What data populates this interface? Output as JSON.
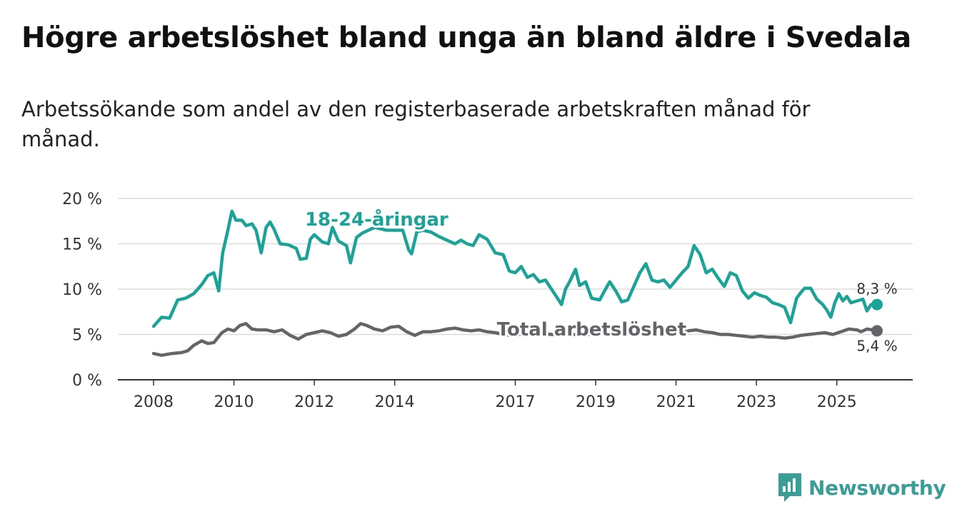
{
  "title": "Högre arbetslöshet bland unga än bland äldre i Svedala",
  "subtitle": "Arbetssökande som andel av den registerbaserade arbetskraften månad för månad.",
  "brand": {
    "name": "Newsworthy",
    "color": "#3a9d96"
  },
  "chart_data": {
    "type": "line",
    "ylim": [
      0,
      20
    ],
    "yticks": [
      "0 %",
      "5 %",
      "10 %",
      "15 %",
      "20 %"
    ],
    "ytick_values": [
      0,
      5,
      10,
      15,
      20
    ],
    "xlim": [
      2008.0,
      2026.0
    ],
    "xticks": [
      "2008",
      "2010",
      "2012",
      "2014",
      "2017",
      "2019",
      "2021",
      "2023",
      "2025"
    ],
    "xtick_values": [
      2008.0,
      2010.0,
      2012.0,
      2014.0,
      2017.0,
      2019.0,
      2021.0,
      2023.0,
      2025.0
    ],
    "grid": true,
    "series": [
      {
        "name": "18-24-åringar",
        "label": "18-24-åringar",
        "color": "#1aa396",
        "end_label": "8,3 %",
        "points": [
          [
            2008.0,
            5.9
          ],
          [
            2008.2,
            6.9
          ],
          [
            2008.4,
            6.8
          ],
          [
            2008.6,
            8.8
          ],
          [
            2008.8,
            9.0
          ],
          [
            2009.0,
            9.5
          ],
          [
            2009.2,
            10.5
          ],
          [
            2009.35,
            11.5
          ],
          [
            2009.5,
            11.8
          ],
          [
            2009.62,
            9.8
          ],
          [
            2009.72,
            14.0
          ],
          [
            2009.85,
            16.5
          ],
          [
            2009.95,
            18.6
          ],
          [
            2010.05,
            17.6
          ],
          [
            2010.2,
            17.6
          ],
          [
            2010.3,
            17.0
          ],
          [
            2010.45,
            17.2
          ],
          [
            2010.55,
            16.5
          ],
          [
            2010.68,
            14.0
          ],
          [
            2010.8,
            16.8
          ],
          [
            2010.9,
            17.4
          ],
          [
            2011.0,
            16.6
          ],
          [
            2011.15,
            15.0
          ],
          [
            2011.35,
            14.9
          ],
          [
            2011.55,
            14.5
          ],
          [
            2011.65,
            13.3
          ],
          [
            2011.8,
            13.4
          ],
          [
            2011.9,
            15.5
          ],
          [
            2012.0,
            16.0
          ],
          [
            2012.2,
            15.2
          ],
          [
            2012.35,
            15.0
          ],
          [
            2012.45,
            16.8
          ],
          [
            2012.6,
            15.3
          ],
          [
            2012.8,
            14.8
          ],
          [
            2012.9,
            12.9
          ],
          [
            2013.05,
            15.7
          ],
          [
            2013.2,
            16.2
          ],
          [
            2013.5,
            16.8
          ],
          [
            2013.8,
            16.5
          ],
          [
            2014.1,
            16.5
          ],
          [
            2014.2,
            16.5
          ],
          [
            2014.35,
            14.3
          ],
          [
            2014.42,
            13.9
          ],
          [
            2014.55,
            16.3
          ],
          [
            2014.7,
            16.5
          ],
          [
            2014.9,
            16.3
          ],
          [
            2015.1,
            15.8
          ],
          [
            2015.3,
            15.4
          ],
          [
            2015.5,
            15.0
          ],
          [
            2015.65,
            15.4
          ],
          [
            2015.8,
            15.0
          ],
          [
            2015.95,
            14.8
          ],
          [
            2016.1,
            16.0
          ],
          [
            2016.3,
            15.5
          ],
          [
            2016.5,
            14.0
          ],
          [
            2016.7,
            13.8
          ],
          [
            2016.85,
            12.0
          ],
          [
            2017.0,
            11.8
          ],
          [
            2017.15,
            12.5
          ],
          [
            2017.3,
            11.3
          ],
          [
            2017.45,
            11.6
          ],
          [
            2017.6,
            10.8
          ],
          [
            2017.75,
            11.0
          ],
          [
            2017.9,
            10.0
          ],
          [
            2018.05,
            9.0
          ],
          [
            2018.15,
            8.3
          ],
          [
            2018.25,
            10.0
          ],
          [
            2018.35,
            10.8
          ],
          [
            2018.5,
            12.2
          ],
          [
            2018.6,
            10.4
          ],
          [
            2018.75,
            10.8
          ],
          [
            2018.9,
            9.0
          ],
          [
            2019.1,
            8.8
          ],
          [
            2019.22,
            9.8
          ],
          [
            2019.35,
            10.8
          ],
          [
            2019.5,
            9.8
          ],
          [
            2019.65,
            8.6
          ],
          [
            2019.8,
            8.8
          ],
          [
            2019.95,
            10.3
          ],
          [
            2020.1,
            11.8
          ],
          [
            2020.25,
            12.8
          ],
          [
            2020.4,
            11.0
          ],
          [
            2020.55,
            10.8
          ],
          [
            2020.7,
            11.0
          ],
          [
            2020.85,
            10.2
          ],
          [
            2021.0,
            11.0
          ],
          [
            2021.15,
            11.8
          ],
          [
            2021.3,
            12.5
          ],
          [
            2021.45,
            14.8
          ],
          [
            2021.6,
            13.8
          ],
          [
            2021.75,
            11.8
          ],
          [
            2021.9,
            12.2
          ],
          [
            2022.05,
            11.2
          ],
          [
            2022.2,
            10.3
          ],
          [
            2022.35,
            11.8
          ],
          [
            2022.5,
            11.5
          ],
          [
            2022.65,
            9.8
          ],
          [
            2022.8,
            9.0
          ],
          [
            2022.95,
            9.6
          ],
          [
            2023.1,
            9.3
          ],
          [
            2023.25,
            9.1
          ],
          [
            2023.4,
            8.5
          ],
          [
            2023.55,
            8.3
          ],
          [
            2023.7,
            8.0
          ],
          [
            2023.85,
            6.3
          ],
          [
            2024.0,
            9.0
          ],
          [
            2024.1,
            9.6
          ],
          [
            2024.2,
            10.1
          ],
          [
            2024.35,
            10.1
          ],
          [
            2024.5,
            8.9
          ],
          [
            2024.65,
            8.3
          ],
          [
            2024.75,
            7.7
          ],
          [
            2024.85,
            6.9
          ],
          [
            2024.95,
            8.5
          ],
          [
            2025.05,
            9.5
          ],
          [
            2025.15,
            8.7
          ],
          [
            2025.25,
            9.2
          ],
          [
            2025.35,
            8.5
          ],
          [
            2025.5,
            8.7
          ],
          [
            2025.65,
            8.9
          ],
          [
            2025.75,
            7.6
          ],
          [
            2025.85,
            8.3
          ],
          [
            2026.0,
            8.3
          ]
        ]
      },
      {
        "name": "Total arbetslöshet",
        "label": "Total arbetslöshet",
        "color": "#666468",
        "end_label": "5,4 %",
        "points": [
          [
            2008.0,
            2.9
          ],
          [
            2008.2,
            2.7
          ],
          [
            2008.45,
            2.9
          ],
          [
            2008.7,
            3.0
          ],
          [
            2008.85,
            3.2
          ],
          [
            2009.0,
            3.8
          ],
          [
            2009.2,
            4.3
          ],
          [
            2009.35,
            4.0
          ],
          [
            2009.5,
            4.1
          ],
          [
            2009.7,
            5.2
          ],
          [
            2009.85,
            5.6
          ],
          [
            2010.0,
            5.4
          ],
          [
            2010.15,
            6.0
          ],
          [
            2010.3,
            6.2
          ],
          [
            2010.45,
            5.6
          ],
          [
            2010.6,
            5.5
          ],
          [
            2010.8,
            5.5
          ],
          [
            2011.0,
            5.3
          ],
          [
            2011.2,
            5.5
          ],
          [
            2011.4,
            4.9
          ],
          [
            2011.6,
            4.5
          ],
          [
            2011.8,
            5.0
          ],
          [
            2012.0,
            5.2
          ],
          [
            2012.2,
            5.4
          ],
          [
            2012.4,
            5.2
          ],
          [
            2012.6,
            4.8
          ],
          [
            2012.8,
            5.0
          ],
          [
            2013.0,
            5.6
          ],
          [
            2013.15,
            6.2
          ],
          [
            2013.3,
            6.0
          ],
          [
            2013.5,
            5.6
          ],
          [
            2013.7,
            5.4
          ],
          [
            2013.9,
            5.8
          ],
          [
            2014.1,
            5.9
          ],
          [
            2014.3,
            5.3
          ],
          [
            2014.5,
            4.9
          ],
          [
            2014.7,
            5.3
          ],
          [
            2014.9,
            5.3
          ],
          [
            2015.1,
            5.4
          ],
          [
            2015.3,
            5.6
          ],
          [
            2015.5,
            5.7
          ],
          [
            2015.7,
            5.5
          ],
          [
            2015.9,
            5.4
          ],
          [
            2016.1,
            5.5
          ],
          [
            2016.3,
            5.3
          ],
          [
            2016.5,
            5.2
          ],
          [
            2016.7,
            5.0
          ],
          [
            2016.9,
            4.9
          ],
          [
            2017.1,
            5.0
          ],
          [
            2017.3,
            5.0
          ],
          [
            2017.5,
            5.0
          ],
          [
            2017.7,
            5.1
          ],
          [
            2017.9,
            5.0
          ],
          [
            2018.1,
            5.0
          ],
          [
            2018.3,
            5.0
          ],
          [
            2018.5,
            5.0
          ],
          [
            2018.7,
            5.0
          ],
          [
            2018.9,
            5.0
          ],
          [
            2019.1,
            5.0
          ],
          [
            2019.3,
            5.0
          ],
          [
            2019.5,
            5.1
          ],
          [
            2019.7,
            5.0
          ],
          [
            2019.9,
            5.0
          ],
          [
            2020.1,
            5.1
          ],
          [
            2020.3,
            5.2
          ],
          [
            2020.5,
            5.2
          ],
          [
            2020.7,
            5.0
          ],
          [
            2020.9,
            5.1
          ],
          [
            2021.1,
            5.2
          ],
          [
            2021.3,
            5.4
          ],
          [
            2021.5,
            5.5
          ],
          [
            2021.7,
            5.3
          ],
          [
            2021.9,
            5.2
          ],
          [
            2022.1,
            5.0
          ],
          [
            2022.3,
            5.0
          ],
          [
            2022.5,
            4.9
          ],
          [
            2022.7,
            4.8
          ],
          [
            2022.9,
            4.7
          ],
          [
            2023.1,
            4.8
          ],
          [
            2023.3,
            4.7
          ],
          [
            2023.5,
            4.7
          ],
          [
            2023.7,
            4.6
          ],
          [
            2023.9,
            4.7
          ],
          [
            2024.1,
            4.9
          ],
          [
            2024.3,
            5.0
          ],
          [
            2024.5,
            5.1
          ],
          [
            2024.7,
            5.2
          ],
          [
            2024.9,
            5.0
          ],
          [
            2025.1,
            5.3
          ],
          [
            2025.3,
            5.6
          ],
          [
            2025.5,
            5.5
          ],
          [
            2025.6,
            5.3
          ],
          [
            2025.75,
            5.6
          ],
          [
            2025.9,
            5.5
          ],
          [
            2026.0,
            5.4
          ]
        ]
      }
    ]
  }
}
